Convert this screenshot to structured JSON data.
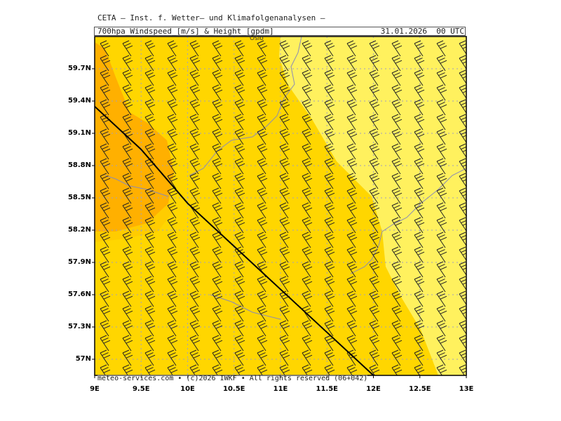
{
  "header": {
    "title": "CETA – Inst. f. Wetter– und Klimafolgenanalysen –",
    "product": "700hpa_Windspeed_[m/s]_&_Height_[gpdm]",
    "datetime": "31.01.2026  00 UTC"
  },
  "footer": "meteo-services.com • (c)2026 IWKF • All rights reserved (06+042)",
  "city_label": "Oslo",
  "axes": {
    "y_ticks": [
      "59.7N",
      "59.4N",
      "59.1N",
      "58.8N",
      "58.5N",
      "58.2N",
      "57.9N",
      "57.6N",
      "57.3N",
      "57N"
    ],
    "x_ticks": [
      "9E",
      "9.5E",
      "10E",
      "10.5E",
      "11E",
      "11.5E",
      "12E",
      "12.5E",
      "13E"
    ],
    "lon_range": [
      9,
      13
    ],
    "lat_range": [
      56.85,
      60.0
    ]
  },
  "colors": {
    "light_yellow": "#FFF15E",
    "gold": "#FFD600",
    "orange": "#FFB000",
    "coast": "#8c8cb4",
    "barb": "#222222",
    "contour": "#000000"
  },
  "legend_levels": [
    "light yellow zone",
    "gold zone",
    "orange core"
  ],
  "height_contour": {
    "points_lonlat": [
      [
        9.0,
        59.35
      ],
      [
        9.5,
        58.95
      ],
      [
        10.0,
        58.45
      ],
      [
        10.5,
        58.05
      ],
      [
        11.0,
        57.65
      ],
      [
        11.5,
        57.25
      ],
      [
        12.0,
        56.85
      ]
    ]
  }
}
